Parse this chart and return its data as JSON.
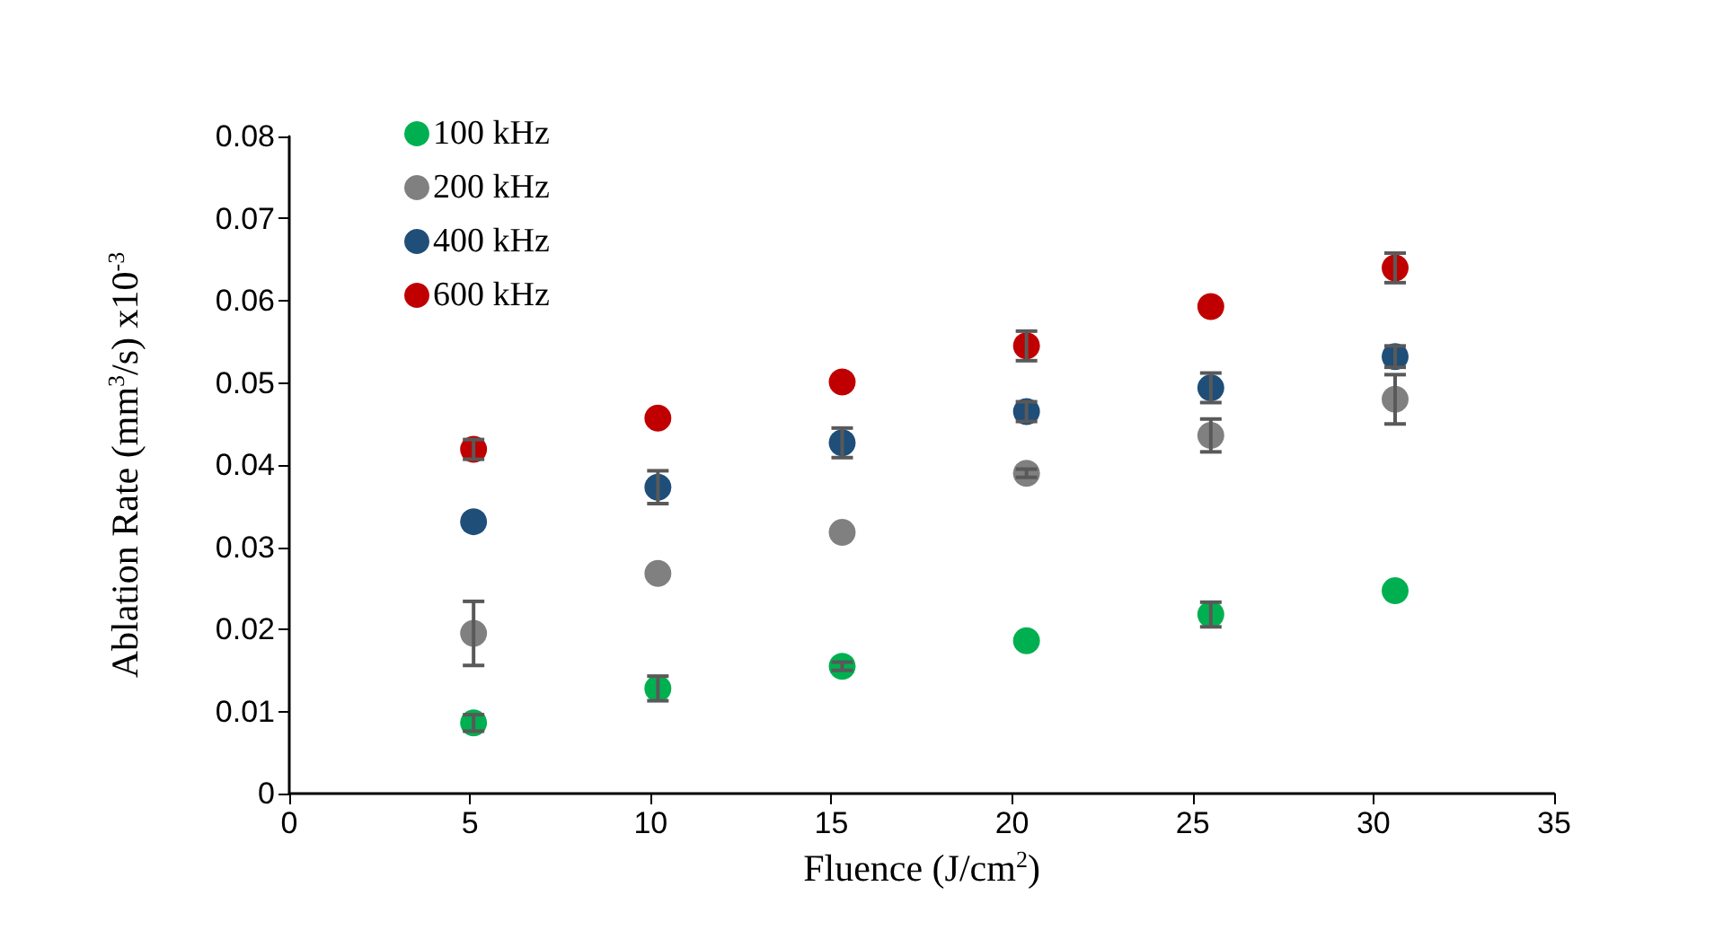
{
  "chart_data": {
    "type": "scatter",
    "xlabel": "Fluence (J/cm$^{2}$)",
    "ylabel": "Ablation Rate (mm$^{3}$/s) x10$^{-3}$",
    "x": [
      5.1,
      10.2,
      15.3,
      20.4,
      25.5,
      30.6
    ],
    "series": [
      {
        "name": "100 kHz",
        "color": "#00b050",
        "values": [
          0.0086,
          0.0128,
          0.0155,
          0.0186,
          0.0218,
          0.0247
        ],
        "errors": [
          0.001,
          0.0015,
          0.0005,
          null,
          0.0015,
          null
        ]
      },
      {
        "name": "200 kHz",
        "color": "#808080",
        "values": [
          0.0195,
          0.0268,
          0.0318,
          0.039,
          0.0436,
          0.048
        ],
        "errors": [
          0.0039,
          null,
          null,
          0.0005,
          0.002,
          0.003
        ]
      },
      {
        "name": "400 kHz",
        "color": "#1f4e79",
        "values": [
          0.0331,
          0.0373,
          0.0427,
          0.0465,
          0.0494,
          0.0532
        ],
        "errors": [
          null,
          0.002,
          0.0018,
          0.0012,
          0.0018,
          0.0013
        ]
      },
      {
        "name": "600 kHz",
        "color": "#c00000",
        "values": [
          0.0419,
          0.0457,
          0.0501,
          0.0545,
          0.0593,
          0.064
        ],
        "errors": [
          0.0012,
          null,
          null,
          0.0018,
          null,
          0.0018
        ]
      }
    ],
    "xlim": [
      0,
      35
    ],
    "xticks": [
      0,
      5,
      10,
      15,
      20,
      25,
      30,
      35
    ],
    "ylim": [
      0,
      0.08
    ],
    "yticks": [
      0,
      0.01,
      0.02,
      0.03,
      0.04,
      0.05,
      0.06,
      0.07,
      0.08
    ],
    "grid": false,
    "legend": "top left",
    "marker": "circle"
  }
}
